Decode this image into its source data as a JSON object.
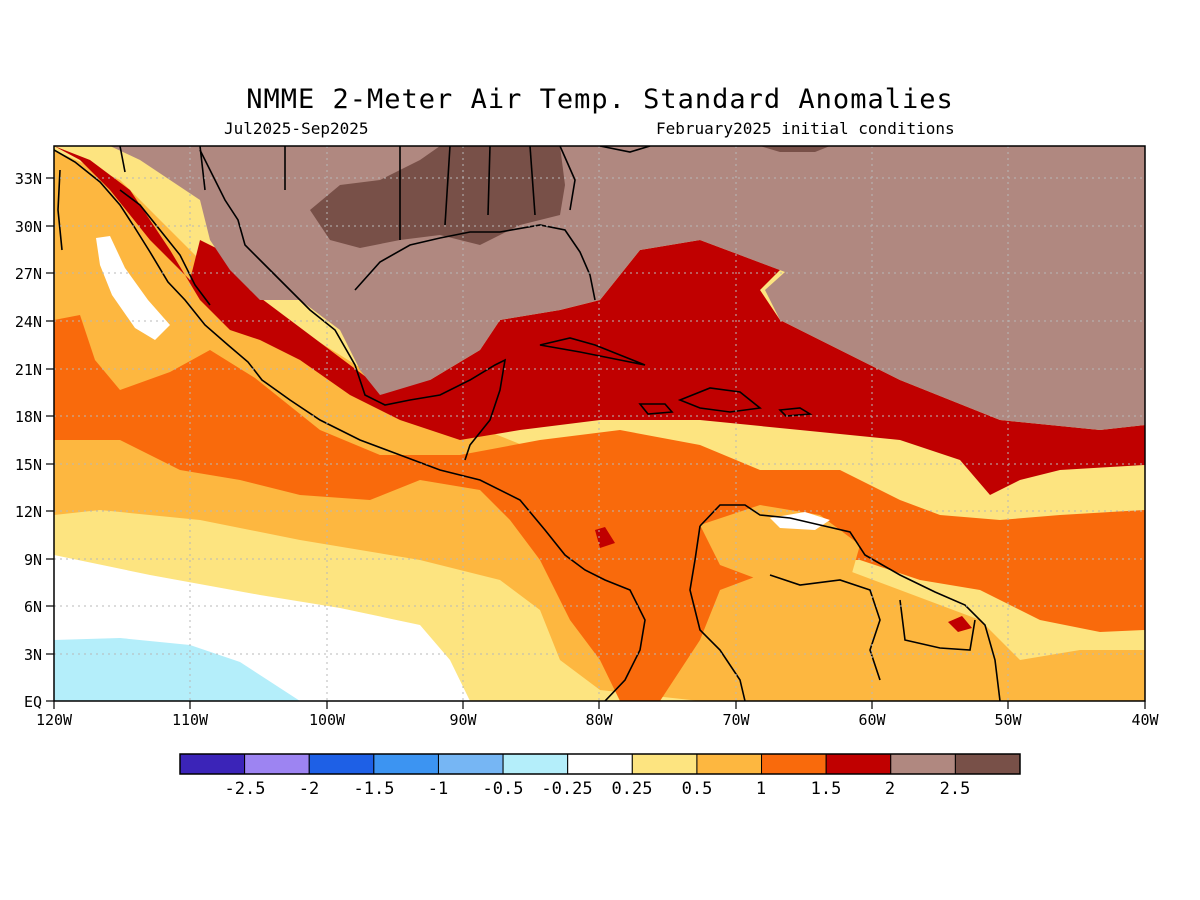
{
  "header": {
    "title": "NMME 2-Meter Air Temp. Standard Anomalies",
    "period": "Jul2025-Sep2025",
    "initial_conditions": "February2025 initial conditions"
  },
  "map": {
    "lon_labels": [
      "120W",
      "110W",
      "100W",
      "90W",
      "80W",
      "70W",
      "60W",
      "50W",
      "40W"
    ],
    "lat_labels": [
      "33N",
      "30N",
      "27N",
      "24N",
      "21N",
      "18N",
      "15N",
      "12N",
      "9N",
      "6N",
      "3N",
      "EQ"
    ],
    "lon_range": [
      -120,
      -40
    ],
    "lat_range": [
      0,
      35
    ],
    "grid": "dotted"
  },
  "legend": {
    "colors": [
      "#3b24b8",
      "#9d84f2",
      "#1e60e6",
      "#3c94f2",
      "#76b6f4",
      "#b4eefa",
      "#ffffff",
      "#fde480",
      "#fdb740",
      "#f96a0c",
      "#c00000",
      "#b08880",
      "#785048"
    ],
    "labels": [
      "-2.5",
      "-2",
      "-1.5",
      "-1",
      "-0.5",
      "-0.25",
      "0.25",
      "0.5",
      "1",
      "1.5",
      "2",
      "2.5"
    ]
  }
}
